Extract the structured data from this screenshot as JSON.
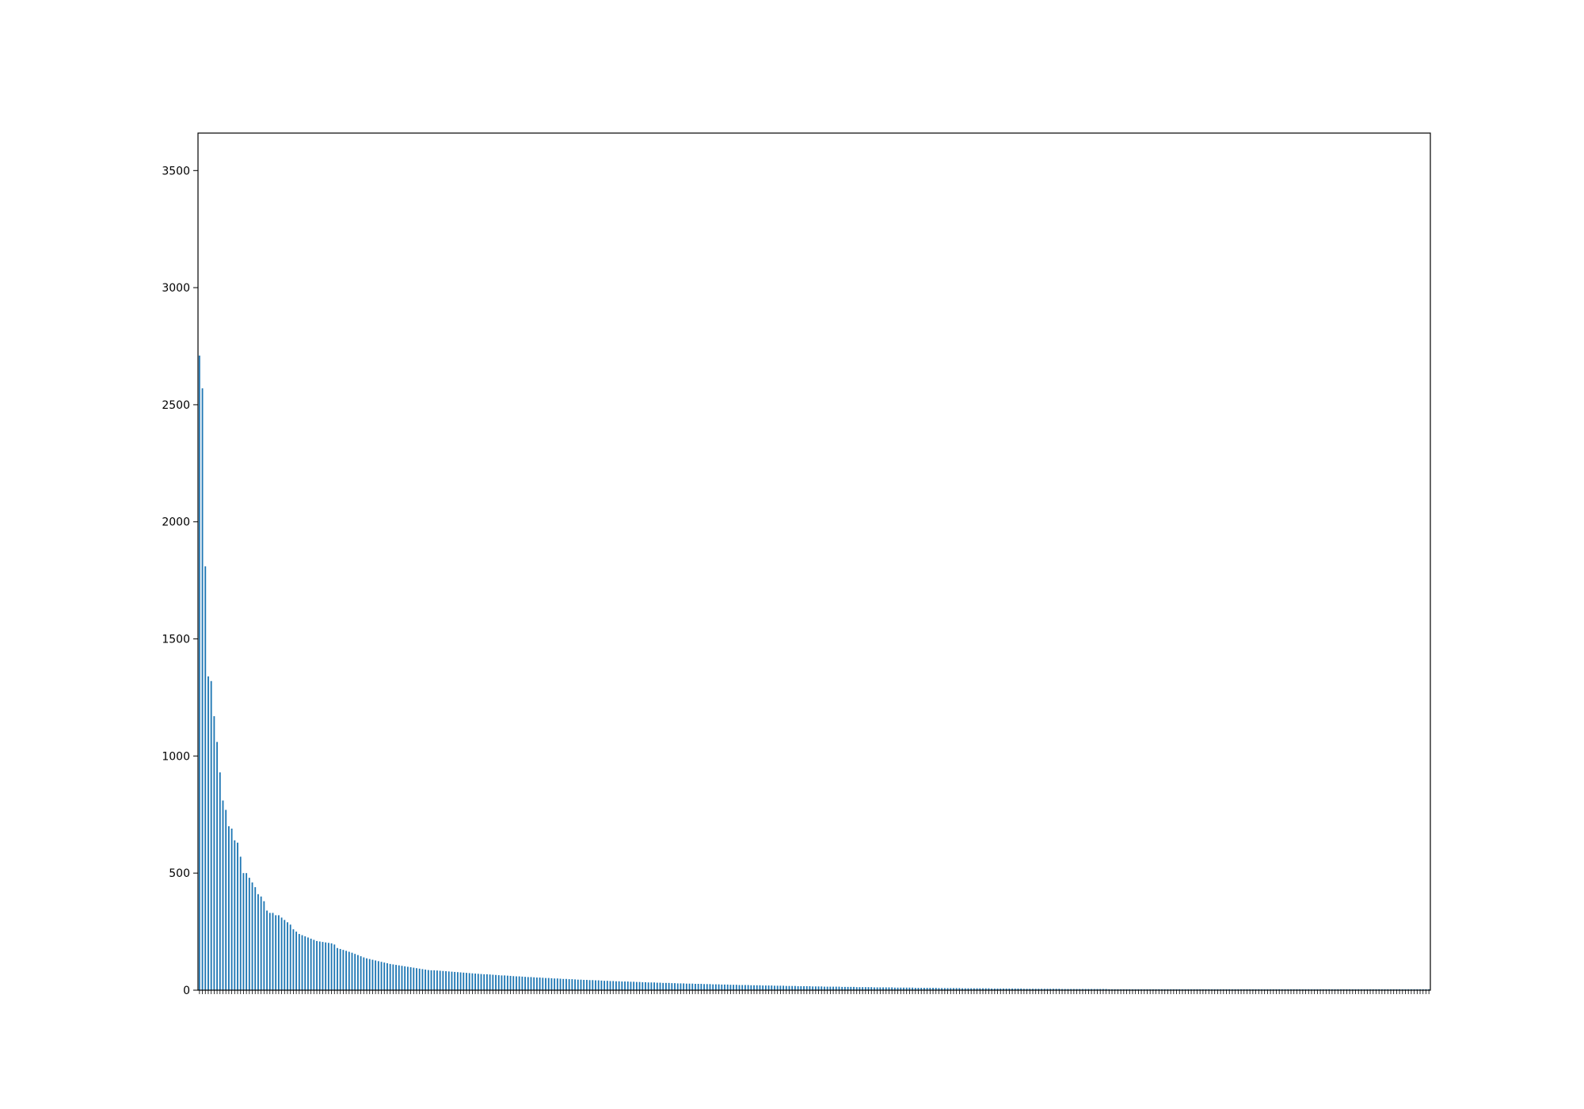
{
  "chart_data": {
    "type": "bar",
    "title": "",
    "xlabel": "",
    "ylabel": "",
    "bar_color": "#1f77b4",
    "ylim": [
      0,
      3660
    ],
    "yticks": [
      0,
      500,
      1000,
      1500,
      2000,
      2500,
      3000,
      3500
    ],
    "grid": false,
    "legend": "none",
    "bar_count": 420,
    "head_values": [
      2710,
      2570,
      1810,
      1340,
      1320,
      1170,
      1060,
      930,
      810,
      770,
      700,
      690,
      640,
      630,
      570,
      500,
      500,
      480,
      460,
      440,
      410,
      400,
      380,
      340,
      330,
      330,
      320,
      320,
      310,
      300,
      290,
      280,
      260,
      250,
      240,
      235,
      230,
      225,
      220,
      215,
      210,
      208,
      206,
      204,
      202,
      200,
      195,
      180,
      176,
      172,
      168,
      164,
      160,
      155,
      150,
      145,
      140,
      136,
      133,
      130,
      127,
      124,
      121,
      118,
      115,
      112,
      110,
      108,
      106,
      104,
      102,
      100,
      98,
      96,
      94,
      92,
      90,
      88,
      86,
      85
    ],
    "tail_decay": {
      "start_value": 85,
      "end_value": 4,
      "rate": 0.0128
    },
    "x_tick_labels_note": ""
  }
}
